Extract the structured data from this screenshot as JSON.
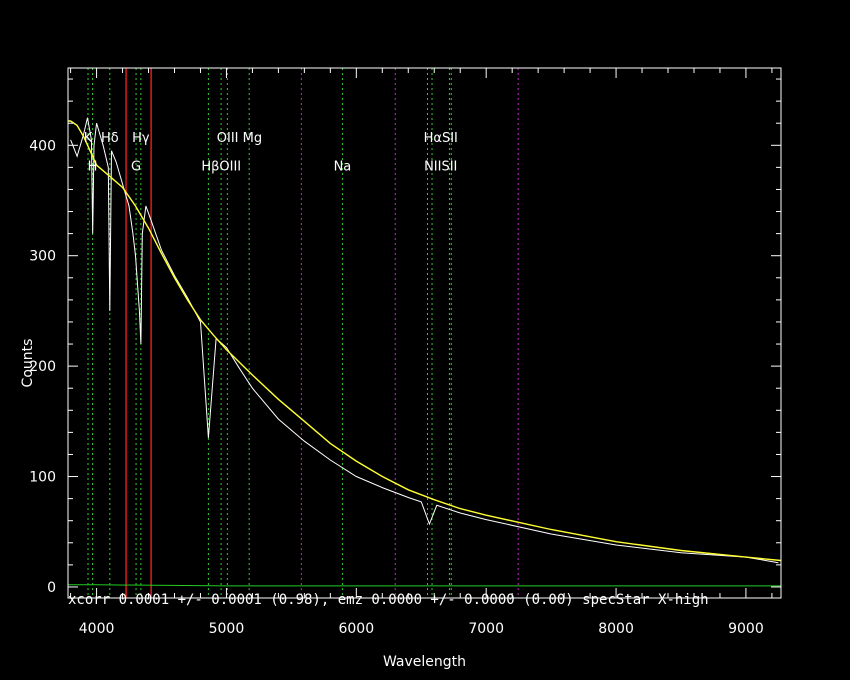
{
  "chart_data": {
    "type": "line",
    "xlabel": "Wavelength",
    "ylabel": "Counts",
    "xlim": [
      3780,
      9270
    ],
    "ylim": [
      -10,
      470
    ],
    "x_ticks": [
      4000,
      5000,
      6000,
      7000,
      8000,
      9000
    ],
    "y_ticks": [
      0,
      100,
      200,
      300,
      400
    ],
    "grid": false,
    "colors": {
      "background": "#000000",
      "axes": "#ffffff",
      "spectrum": "#ffffff",
      "model": "#ffff33",
      "error": "#22cc22",
      "absorption_line": "#33cc33",
      "emission_line": "#cc22cc",
      "red_line": "#ff2020"
    },
    "annotation": "xcorr  0.0001 +/- 0.0001 (0.98), emz  0.0000 +/- 0.0000 (0.00) specStar X-high",
    "series": [
      {
        "name": "",
        "role": "spectrum",
        "x": [
          3800,
          3850,
          3900,
          3930,
          3960,
          3970,
          3980,
          4000,
          4050,
          4090,
          4102,
          4115,
          4150,
          4200,
          4250,
          4280,
          4300,
          4330,
          4341,
          4352,
          4380,
          4420,
          4500,
          4600,
          4700,
          4800,
          4861,
          4920,
          5000,
          5100,
          5200,
          5400,
          5600,
          5800,
          6000,
          6200,
          6400,
          6500,
          6563,
          6620,
          6800,
          7000,
          7500,
          8000,
          8500,
          9000,
          9250
        ],
        "y": [
          405,
          390,
          410,
          425,
          405,
          320,
          400,
          420,
          400,
          380,
          250,
          395,
          385,
          365,
          345,
          320,
          300,
          250,
          220,
          320,
          345,
          332,
          305,
          282,
          262,
          240,
          135,
          225,
          217,
          198,
          180,
          152,
          132,
          115,
          100,
          90,
          81,
          77,
          57,
          74,
          67,
          61,
          48,
          38,
          31,
          27,
          22
        ]
      },
      {
        "name": "",
        "role": "model",
        "x": [
          3780,
          3800,
          3850,
          3900,
          3950,
          4000,
          4100,
          4200,
          4300,
          4400,
          4500,
          4600,
          4700,
          4800,
          4900,
          5000,
          5200,
          5400,
          5600,
          5800,
          6000,
          6200,
          6400,
          6600,
          6800,
          7000,
          7500,
          8000,
          8500,
          9000,
          9270
        ],
        "y": [
          422,
          422,
          418,
          408,
          395,
          382,
          372,
          362,
          345,
          325,
          302,
          280,
          260,
          242,
          228,
          215,
          192,
          170,
          150,
          130,
          114,
          100,
          88,
          79,
          71,
          65,
          52,
          41,
          33,
          27,
          24
        ]
      },
      {
        "name": "",
        "role": "error",
        "x": [
          3780,
          4000,
          5000,
          6000,
          7000,
          8000,
          9000,
          9270
        ],
        "y": [
          2,
          2,
          1,
          1,
          1,
          1,
          1,
          1
        ]
      }
    ],
    "vlines": {
      "absorption": [
        3934,
        3969,
        4102,
        4304,
        4341,
        4861,
        4959,
        5007,
        5175,
        5893,
        6548,
        6583,
        6717,
        6731
      ],
      "emission": [
        5577,
        6300,
        7246
      ],
      "red": [
        4227,
        4420
      ]
    },
    "line_labels": [
      {
        "text": "K",
        "x": 3934,
        "y": 403
      },
      {
        "text": "Hδ",
        "x": 4102,
        "y": 403
      },
      {
        "text": "Hγ",
        "x": 4341,
        "y": 403
      },
      {
        "text": "OIII Mg",
        "x": 5100,
        "y": 403
      },
      {
        "text": "HαSII",
        "x": 6650,
        "y": 403
      },
      {
        "text": "H",
        "x": 3969,
        "y": 377
      },
      {
        "text": "G",
        "x": 4304,
        "y": 377
      },
      {
        "text": "HβOIII",
        "x": 4960,
        "y": 377
      },
      {
        "text": "Na",
        "x": 5893,
        "y": 377
      },
      {
        "text": "NIISII",
        "x": 6650,
        "y": 377
      }
    ]
  }
}
